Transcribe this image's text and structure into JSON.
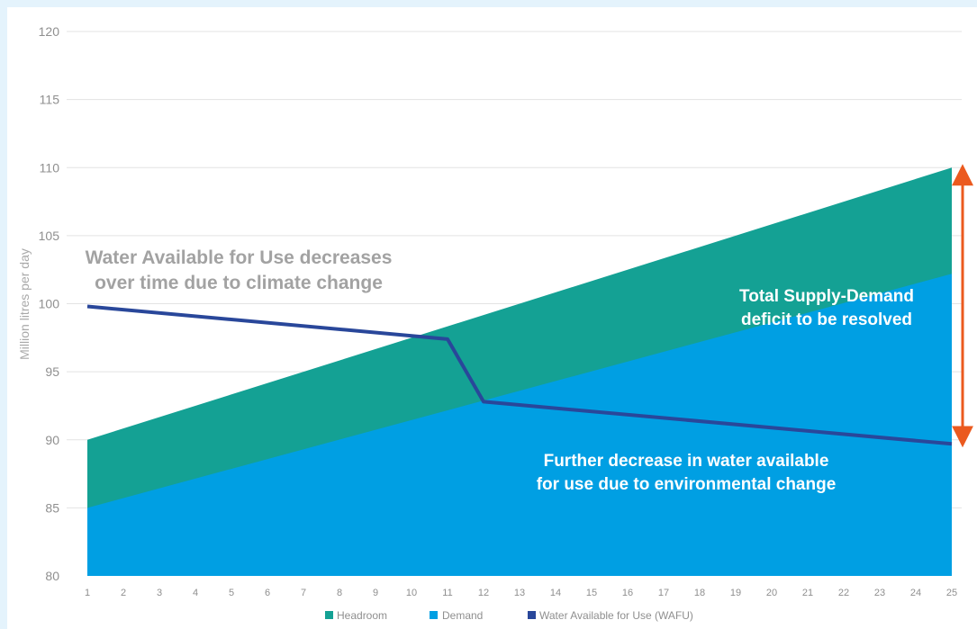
{
  "chart_data": {
    "type": "area",
    "ylabel": "Million litres per day",
    "ylim": [
      80,
      120
    ],
    "yticks": [
      80,
      85,
      90,
      95,
      100,
      105,
      110,
      115,
      120
    ],
    "x": [
      1,
      2,
      3,
      4,
      5,
      6,
      7,
      8,
      9,
      10,
      11,
      12,
      13,
      14,
      15,
      16,
      17,
      18,
      19,
      20,
      21,
      22,
      23,
      24,
      25
    ],
    "grid": "horizontal",
    "legend_position": "bottom",
    "series": [
      {
        "name": "Headroom",
        "kind": "stacked-area",
        "color": "#14a194",
        "x": [
          1,
          25
        ],
        "y": [
          90,
          110
        ]
      },
      {
        "name": "Demand",
        "kind": "area",
        "color": "#009fe3",
        "x": [
          1,
          25
        ],
        "y": [
          85,
          102.2
        ]
      },
      {
        "name": "Water Available for Use (WAFU)",
        "kind": "line",
        "color": "#29479a",
        "x": [
          1,
          11,
          12,
          25
        ],
        "y": [
          99.8,
          97.4,
          92.8,
          89.7
        ]
      }
    ],
    "annotations": [
      {
        "id": "climate",
        "lines": [
          "Water Available for Use decreases",
          "over time due to climate change"
        ]
      },
      {
        "id": "deficit",
        "lines": [
          "Total Supply-Demand",
          "deficit to be resolved"
        ]
      },
      {
        "id": "environment",
        "lines": [
          "Further decrease in water available",
          "for use due to environmental change"
        ]
      }
    ],
    "deficit_arrow": {
      "color": "#eb5a1f",
      "x": 25,
      "from": 89.7,
      "to": 110
    }
  }
}
